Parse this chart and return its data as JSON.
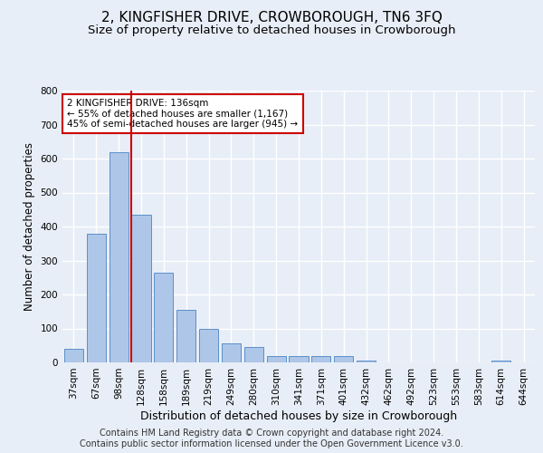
{
  "title": "2, KINGFISHER DRIVE, CROWBOROUGH, TN6 3FQ",
  "subtitle": "Size of property relative to detached houses in Crowborough",
  "xlabel": "Distribution of detached houses by size in Crowborough",
  "ylabel": "Number of detached properties",
  "footnote": "Contains HM Land Registry data © Crown copyright and database right 2024.\nContains public sector information licensed under the Open Government Licence v3.0.",
  "bar_labels": [
    "37sqm",
    "67sqm",
    "98sqm",
    "128sqm",
    "158sqm",
    "189sqm",
    "219sqm",
    "249sqm",
    "280sqm",
    "310sqm",
    "341sqm",
    "371sqm",
    "401sqm",
    "432sqm",
    "462sqm",
    "492sqm",
    "523sqm",
    "553sqm",
    "583sqm",
    "614sqm",
    "644sqm"
  ],
  "bar_values": [
    40,
    380,
    620,
    435,
    265,
    155,
    100,
    55,
    45,
    20,
    20,
    20,
    20,
    5,
    0,
    0,
    0,
    0,
    0,
    5,
    0
  ],
  "bar_color": "#aec6e8",
  "bar_edge_color": "#5b8fc9",
  "background_color": "#e8eef7",
  "grid_color": "#ffffff",
  "vline_color": "#cc0000",
  "vline_index": 2.575,
  "annotation_text": "2 KINGFISHER DRIVE: 136sqm\n← 55% of detached houses are smaller (1,167)\n45% of semi-detached houses are larger (945) →",
  "annotation_box_color": "#ffffff",
  "annotation_box_edge": "#cc0000",
  "ylim": [
    0,
    800
  ],
  "yticks": [
    0,
    100,
    200,
    300,
    400,
    500,
    600,
    700,
    800
  ],
  "title_fontsize": 11,
  "subtitle_fontsize": 9.5,
  "ylabel_fontsize": 8.5,
  "xlabel_fontsize": 9,
  "tick_fontsize": 7.5,
  "footnote_fontsize": 7,
  "annot_fontsize": 7.5
}
